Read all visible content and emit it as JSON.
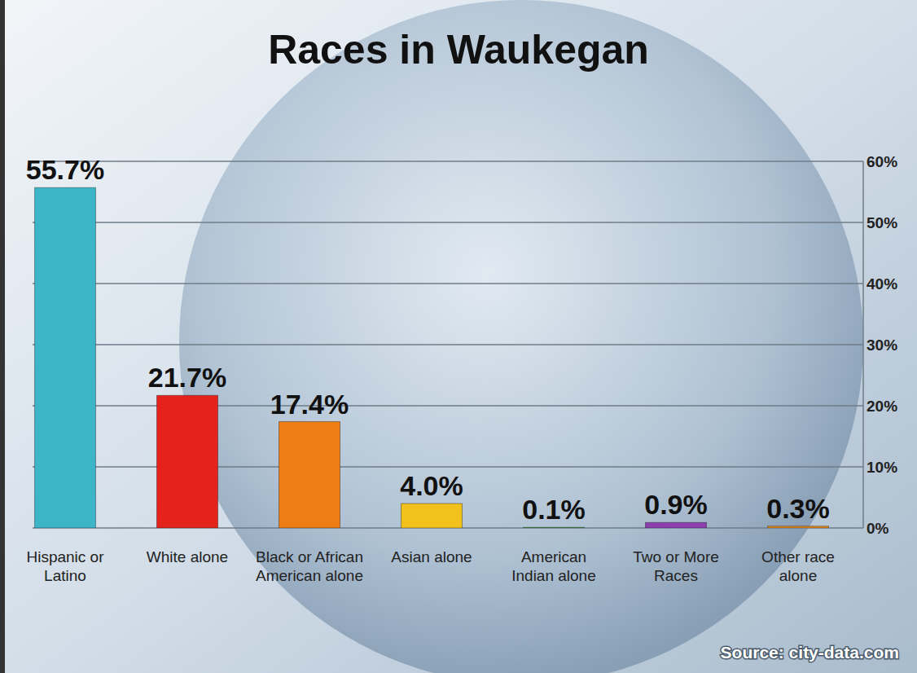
{
  "chart_data": {
    "type": "bar",
    "title": "Races in Waukegan",
    "categories": [
      "Hispanic or Latino",
      "White alone",
      "Black or African American alone",
      "Asian alone",
      "American Indian alone",
      "Two or More Races",
      "Other race alone"
    ],
    "values": [
      55.7,
      21.7,
      17.4,
      4.0,
      0.1,
      0.9,
      0.3
    ],
    "value_labels": [
      "55.7%",
      "21.7%",
      "17.4%",
      "4.0%",
      "0.1%",
      "0.9%",
      "0.3%"
    ],
    "colors": [
      "#3db5c8",
      "#e5231d",
      "#ef7d16",
      "#f2c11c",
      "#4aa84a",
      "#8e3fae",
      "#e8891e"
    ],
    "ylim": [
      0,
      60
    ],
    "yticks": [
      {
        "value": 0,
        "label": "0%"
      },
      {
        "value": 10,
        "label": "10%"
      },
      {
        "value": 20,
        "label": "20%"
      },
      {
        "value": 30,
        "label": "30%"
      },
      {
        "value": 40,
        "label": "40%"
      },
      {
        "value": 50,
        "label": "50%"
      },
      {
        "value": 60,
        "label": "60%"
      }
    ],
    "grid": true,
    "data_labels": true,
    "annotations": [
      "Source: city-data.com"
    ]
  }
}
